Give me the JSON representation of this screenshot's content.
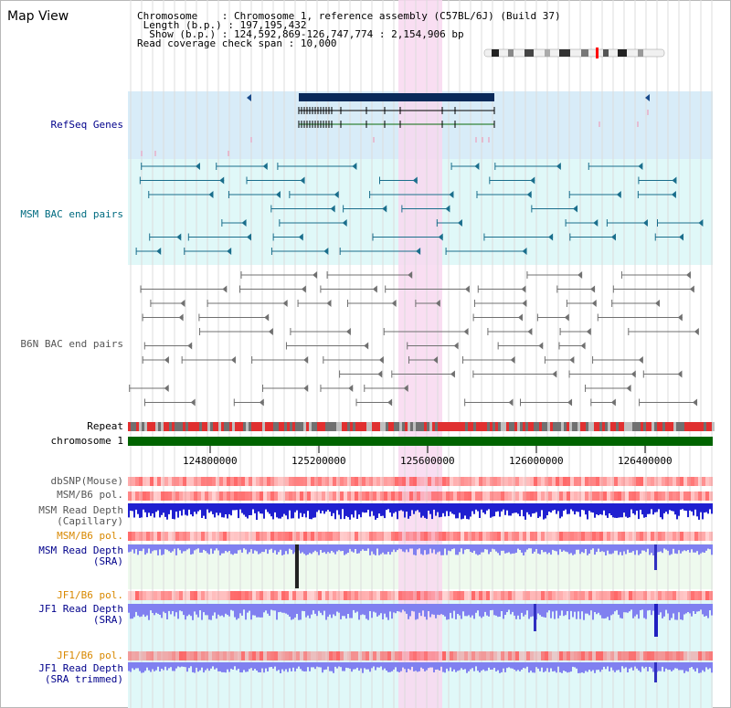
{
  "title": "Map View",
  "info": {
    "chromosome_key": "Chromosome",
    "chromosome_val": ": Chromosome 1, reference assembly (C57BL/6J) (Build 37)",
    "length_key": "Length (b.p.)",
    "length_val": ": 197,195,432",
    "show_key": "Show (b.p.)",
    "show_val": ": 124,592,869-126,747,774 : 2,154,906 bp",
    "span_key": "Read coverage check span",
    "span_val": ": 10,000"
  },
  "tracks": {
    "refseq": "RefSeq Genes",
    "msm_bac": "MSM BAC end pairs",
    "b6n_bac": "B6N BAC end pairs",
    "repeat": "Repeat",
    "chromosome": "chromosome 1",
    "dbsnp": "dbSNP(Mouse)",
    "msm_b6_pol_1": "MSM/B6 pol.",
    "msm_depth_cap_1": "MSM Read Depth",
    "msm_depth_cap_2": "(Capillary)",
    "msm_b6_pol_2": "MSM/B6 pol.",
    "msm_depth_sra_1": "MSM Read Depth",
    "msm_depth_sra_2": "(SRA)",
    "jf1_b6_pol_1": "JF1/B6 pol.",
    "jf1_depth_sra_1": "JF1 Read Depth",
    "jf1_depth_sra_2": "(SRA)",
    "jf1_b6_pol_2": "JF1/B6 pol.",
    "jf1_depth_trim_1": "JF1 Read Depth",
    "jf1_depth_trim_2": "(SRA trimmed)"
  },
  "axis": {
    "ticks": [
      "124800000",
      "125200000",
      "125600000",
      "126000000",
      "126400000"
    ]
  },
  "colors": {
    "refseq_bg": "#d8ecf8",
    "msm_bg": "#e0f8f8",
    "highlight": "#f8d8f0",
    "chromosome_bar": "#006400",
    "msm_feature": "#1a6e8c",
    "b6n_feature": "#707070",
    "gene": "#0a2a5a",
    "depth_blue": "#2020d0",
    "sra_blue": "#8080f0",
    "snp_red": "#ff5555"
  }
}
